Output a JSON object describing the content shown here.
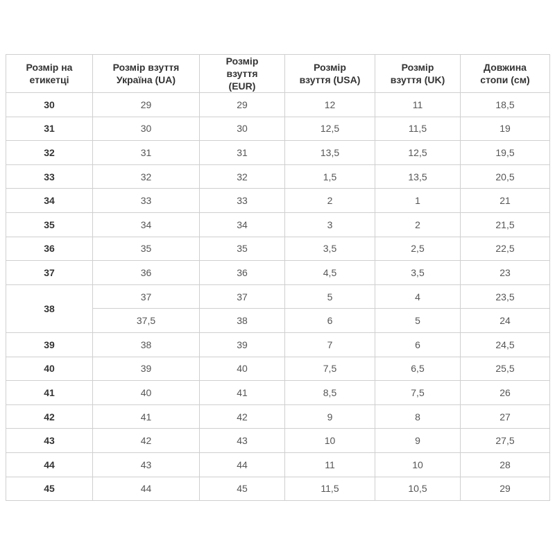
{
  "table": {
    "header": [
      "Розмір на етикетці",
      "Розмір взуття Україна (UA)",
      "Розмір взуття (EUR)",
      "Розмір взуття (USA)",
      "Розмір взуття (UK)",
      "Довжина стопи (см)"
    ],
    "groups": [
      {
        "label": "30",
        "rows": [
          [
            "29",
            "29",
            "12",
            "11",
            "18,5"
          ]
        ]
      },
      {
        "label": "31",
        "rows": [
          [
            "30",
            "30",
            "12,5",
            "11,5",
            "19"
          ]
        ]
      },
      {
        "label": "32",
        "rows": [
          [
            "31",
            "31",
            "13,5",
            "12,5",
            "19,5"
          ]
        ]
      },
      {
        "label": "33",
        "rows": [
          [
            "32",
            "32",
            "1,5",
            "13,5",
            "20,5"
          ]
        ]
      },
      {
        "label": "34",
        "rows": [
          [
            "33",
            "33",
            "2",
            "1",
            "21"
          ]
        ]
      },
      {
        "label": "35",
        "rows": [
          [
            "34",
            "34",
            "3",
            "2",
            "21,5"
          ]
        ]
      },
      {
        "label": "36",
        "rows": [
          [
            "35",
            "35",
            "3,5",
            "2,5",
            "22,5"
          ]
        ]
      },
      {
        "label": "37",
        "rows": [
          [
            "36",
            "36",
            "4,5",
            "3,5",
            "23"
          ]
        ]
      },
      {
        "label": "38",
        "rows": [
          [
            "37",
            "37",
            "5",
            "4",
            "23,5"
          ],
          [
            "37,5",
            "38",
            "6",
            "5",
            "24"
          ]
        ]
      },
      {
        "label": "39",
        "rows": [
          [
            "38",
            "39",
            "7",
            "6",
            "24,5"
          ]
        ]
      },
      {
        "label": "40",
        "rows": [
          [
            "39",
            "40",
            "7,5",
            "6,5",
            "25,5"
          ]
        ]
      },
      {
        "label": "41",
        "rows": [
          [
            "40",
            "41",
            "8,5",
            "7,5",
            "26"
          ]
        ]
      },
      {
        "label": "42",
        "rows": [
          [
            "41",
            "42",
            "9",
            "8",
            "27"
          ]
        ]
      },
      {
        "label": "43",
        "rows": [
          [
            "42",
            "43",
            "10",
            "9",
            "27,5"
          ]
        ]
      },
      {
        "label": "44",
        "rows": [
          [
            "43",
            "44",
            "11",
            "10",
            "28"
          ]
        ]
      },
      {
        "label": "45",
        "rows": [
          [
            "44",
            "45",
            "11,5",
            "10,5",
            "29"
          ]
        ]
      }
    ]
  }
}
